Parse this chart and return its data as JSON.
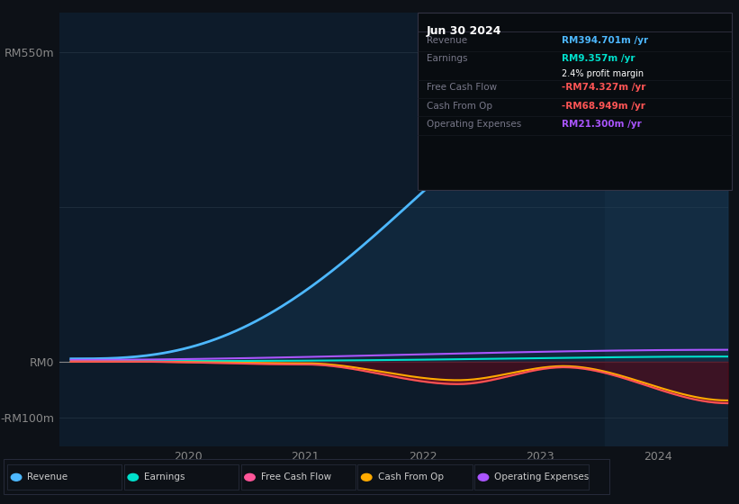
{
  "bg_color": "#0d1117",
  "plot_bg_color": "#0d1b2a",
  "title": "Jun 30 2024",
  "ylim": [
    -150,
    620
  ],
  "ytick_vals": [
    -100,
    0,
    550
  ],
  "ytick_labels": [
    "-RM100m",
    "RM0",
    "RM550m"
  ],
  "revenue_color": "#4db8ff",
  "revenue_fill_color": "#1a4466",
  "earnings_color": "#00e0cc",
  "fcf_color": "#ff5555",
  "cfo_color": "#ffaa00",
  "opex_color": "#aa55ff",
  "fcf_fill_color": "#6b1020",
  "highlight_color": "#1a3a5c",
  "grid_color": "#2a3a4a",
  "zero_line_color": "#888888",
  "tick_color": "#888888",
  "legend": [
    {
      "label": "Revenue",
      "color": "#4db8ff"
    },
    {
      "label": "Earnings",
      "color": "#00e0cc"
    },
    {
      "label": "Free Cash Flow",
      "color": "#ff5599"
    },
    {
      "label": "Cash From Op",
      "color": "#ffaa00"
    },
    {
      "label": "Operating Expenses",
      "color": "#aa55ff"
    }
  ],
  "table_rows": [
    {
      "label": "Revenue",
      "value": "RM394.701m /yr",
      "color": "#4db8ff",
      "sub": null,
      "sub_color": null
    },
    {
      "label": "Earnings",
      "value": "RM9.357m /yr",
      "color": "#00e0cc",
      "sub": "2.4% profit margin",
      "sub_color": "#ffffff"
    },
    {
      "label": "Free Cash Flow",
      "value": "-RM74.327m /yr",
      "color": "#ff5555",
      "sub": null,
      "sub_color": null
    },
    {
      "label": "Cash From Op",
      "value": "-RM68.949m /yr",
      "color": "#ff5555",
      "sub": null,
      "sub_color": null
    },
    {
      "label": "Operating Expenses",
      "value": "RM21.300m /yr",
      "color": "#aa55ff",
      "sub": null,
      "sub_color": null
    }
  ]
}
